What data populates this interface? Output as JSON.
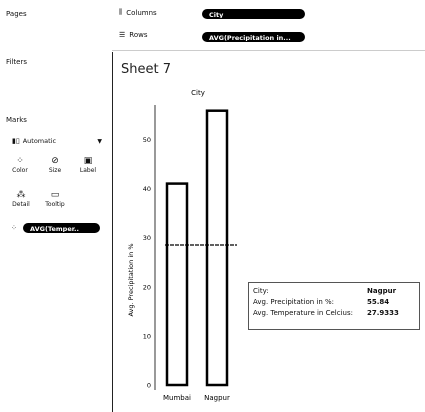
{
  "left": {
    "pages_title": "Pages",
    "filters_title": "Filters",
    "marks_title": "Marks",
    "marks_type": "Automatic",
    "buttons": [
      {
        "label": "Color",
        "icon": "color-icon"
      },
      {
        "label": "Size",
        "icon": "size-icon"
      },
      {
        "label": "Label",
        "icon": "label-icon"
      },
      {
        "label": "Detail",
        "icon": "detail-icon"
      },
      {
        "label": "Tooltip",
        "icon": "tooltip-icon"
      }
    ],
    "marks_pill": "AVG(Temper.."
  },
  "shelves": {
    "columns_label": "Columns",
    "columns_pill": "City",
    "rows_label": "Rows",
    "rows_pill": "AVG(Precipitation in..."
  },
  "sheet": {
    "title": "Sheet 7",
    "column_header": "City",
    "y_axis_label": "Avg. Precipitation in %"
  },
  "chart_data": {
    "type": "bar",
    "categories": [
      "Mumbai",
      "Nagpur"
    ],
    "values": [
      41,
      55.84
    ],
    "ylabel": "Avg. Precipitation in %",
    "xlabel": "",
    "yticks": [
      0,
      10,
      20,
      30,
      40,
      50
    ],
    "ylim": [
      0,
      57
    ],
    "reference_line": 28.5
  },
  "tooltip": {
    "rows": [
      {
        "key": "City:",
        "value": "Nagpur"
      },
      {
        "key": "Avg. Precipitation in %:",
        "value": "55.84"
      },
      {
        "key": "Avg. Temperature in Celcius:",
        "value": "27.9333"
      }
    ]
  }
}
